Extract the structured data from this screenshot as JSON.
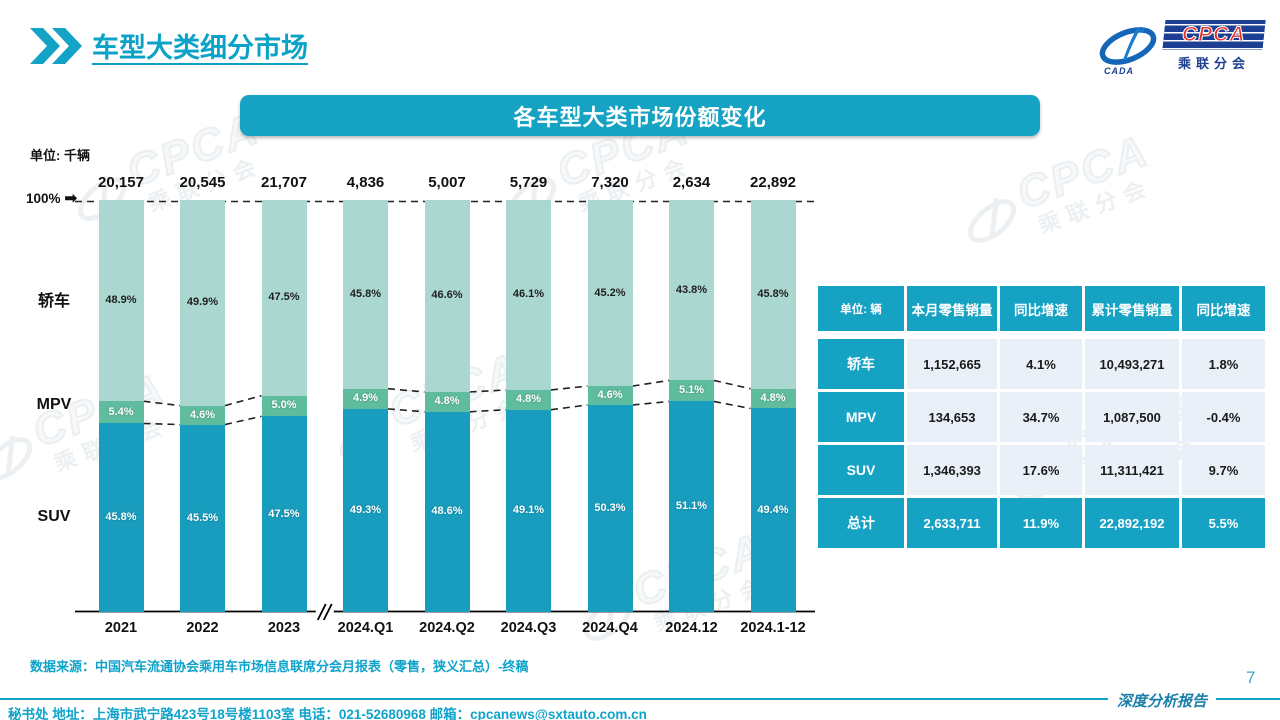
{
  "page": {
    "title": "车型大类细分市场",
    "page_number": "7",
    "report_tag": "深度分析报告"
  },
  "logo": {
    "cada_text": "CADA",
    "cpca_text": "CPCA",
    "subtitle": "乘联分会"
  },
  "banner": {
    "title": "各车型大类市场份额变化"
  },
  "watermark": {
    "line1": "CPCA",
    "line2": "乘联分会"
  },
  "chart_data": {
    "type": "bar",
    "variant": "stacked-100-percent",
    "unit_label": "单位: 千辆",
    "y_top_label": "100%",
    "categories": [
      "2021",
      "2022",
      "2023",
      "2024.Q1",
      "2024.Q2",
      "2024.Q3",
      "2024.Q4",
      "2024.12",
      "2024.1-12"
    ],
    "totals": [
      "20,157",
      "20,545",
      "21,707",
      "4,836",
      "5,007",
      "5,729",
      "7,320",
      "2,634",
      "22,892"
    ],
    "series": [
      {
        "name": "轿车",
        "color": "#aad7d0",
        "values": [
          48.9,
          49.9,
          47.5,
          45.8,
          46.6,
          46.1,
          45.2,
          43.8,
          45.8
        ]
      },
      {
        "name": "MPV",
        "color": "#5fbc9e",
        "values": [
          5.4,
          4.6,
          5.0,
          4.9,
          4.8,
          4.8,
          4.6,
          5.1,
          4.8
        ]
      },
      {
        "name": "SUV",
        "color": "#189dbe",
        "values": [
          45.8,
          45.5,
          47.5,
          49.3,
          48.6,
          49.1,
          50.3,
          51.1,
          49.4
        ]
      }
    ],
    "axis_break_after": 2,
    "ylim": [
      0,
      100
    ],
    "grid": false,
    "legend_position": "left-side-labels"
  },
  "table": {
    "unit_header": "单位: 辆",
    "columns": [
      "本月零售销量",
      "同比增速",
      "累计零售销量",
      "同比增速"
    ],
    "rows": [
      {
        "label": "轿车",
        "cells": [
          "1,152,665",
          "4.1%",
          "10,493,271",
          "1.8%"
        ],
        "total": false
      },
      {
        "label": "MPV",
        "cells": [
          "134,653",
          "34.7%",
          "1,087,500",
          "-0.4%"
        ],
        "total": false
      },
      {
        "label": "SUV",
        "cells": [
          "1,346,393",
          "17.6%",
          "11,311,421",
          "9.7%"
        ],
        "total": false
      },
      {
        "label": "总计",
        "cells": [
          "2,633,711",
          "11.9%",
          "22,892,192",
          "5.5%"
        ],
        "total": true
      }
    ]
  },
  "source_note": "数据来源：中国汽车流通协会乘用车市场信息联席分会月报表（零售，狭义汇总）-终稿",
  "footer": "秘书处  地址：上海市武宁路423号18号楼1103室  电话：021-52680968   邮箱：cpcanews@sxtauto.com.cn",
  "colors": {
    "teal": "#16a2c3",
    "sedan_segment": "#aad7d0",
    "mpv_segment": "#5fbc9e",
    "suv_segment": "#189dbe",
    "navy": "#1c3f94",
    "logo_red": "#e23128"
  }
}
